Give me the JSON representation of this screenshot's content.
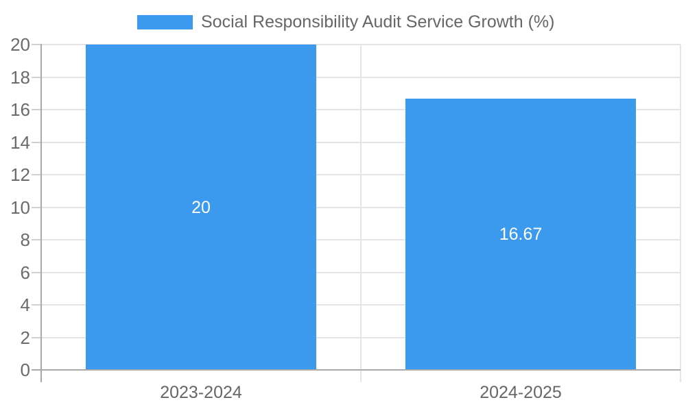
{
  "legend": {
    "label": "Social Responsibility Audit Service Growth (%)"
  },
  "chart_data": {
    "type": "bar",
    "title": "Social Responsibility Audit Service Growth (%)",
    "categories": [
      "2023-2024",
      "2024-2025"
    ],
    "values": [
      20,
      16.67
    ],
    "value_labels": [
      "20",
      "16.67"
    ],
    "ylim": [
      0,
      20
    ],
    "ytick_step": 2,
    "ytick_labels": [
      "0",
      "2",
      "4",
      "6",
      "8",
      "10",
      "12",
      "14",
      "16",
      "18",
      "20"
    ],
    "xlabel": "",
    "ylabel": "",
    "grid": true,
    "legend_position": "top-center",
    "value_label_position": "inside-center"
  },
  "colors": {
    "bar": "#3b99ee",
    "grid": "#e4e4e4",
    "axis": "#a9a9a9",
    "tick": "#d0d0d0",
    "text": "#666666",
    "y_tick_text": "#6a6a6a",
    "value_label": "#ffffff",
    "background": "#ffffff"
  }
}
